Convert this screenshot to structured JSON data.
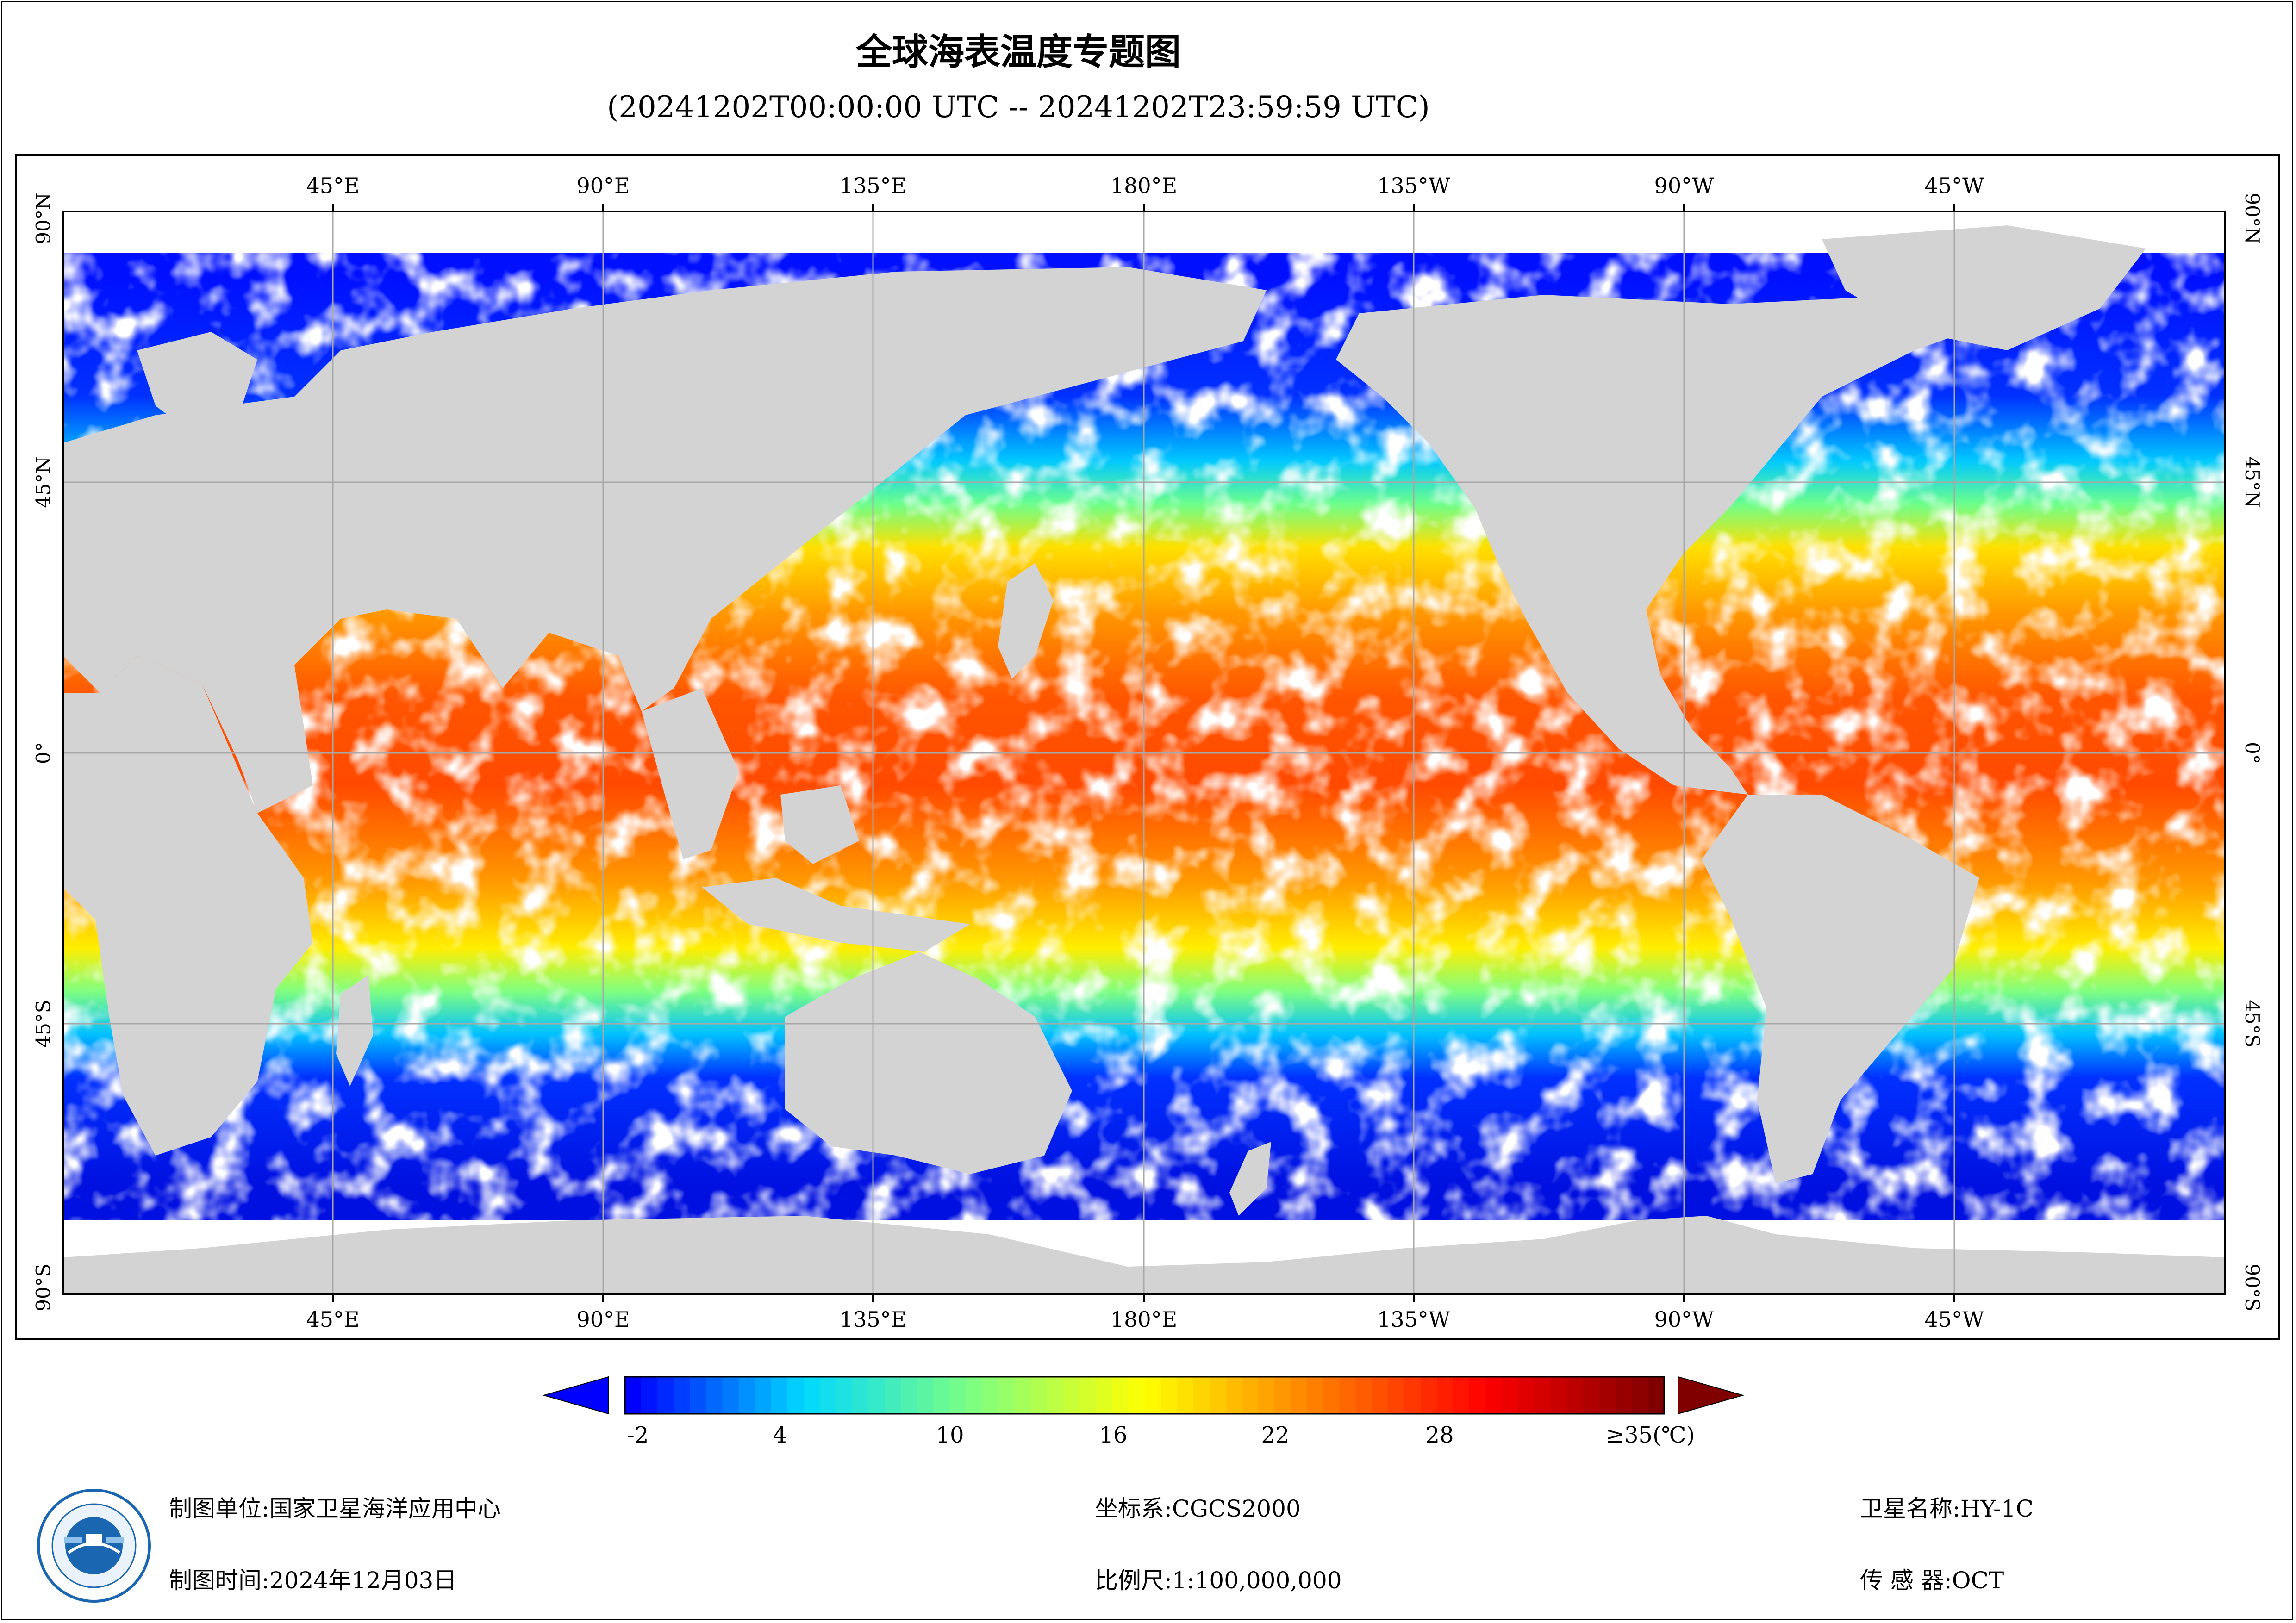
{
  "header": {
    "title": "全球海表温度专题图",
    "subtitle": "(20241202T00:00:00 UTC -- 20241202T23:59:59 UTC)"
  },
  "map": {
    "longitude_labels": [
      "45°E",
      "90°E",
      "135°E",
      "180°E",
      "135°W",
      "90°W",
      "45°W"
    ],
    "latitude_labels": [
      "90°N",
      "45°N",
      "0°",
      "45°S",
      "90°S"
    ],
    "colors": {
      "land": "#d3d3d3",
      "cloud_no_data": "#ffffff",
      "gridline": "#a8a8a8"
    }
  },
  "colorbar": {
    "tick_labels": [
      "-2",
      "4",
      "10",
      "16",
      "22",
      "28",
      "≥35(℃)"
    ],
    "colors": [
      "#0000ff",
      "#00d8ff",
      "#7fff7f",
      "#ffff00",
      "#ff8000",
      "#ff0000",
      "#800000"
    ],
    "range": [
      -2,
      35
    ],
    "unit": "℃"
  },
  "footer": {
    "producer_label": "制图单位:",
    "producer_value": "国家卫星海洋应用中心",
    "time_label": "制图时间:",
    "time_value": "2024年12月03日",
    "crs_label": "坐标系:",
    "crs_value": "CGCS2000",
    "scale_label": "比例尺:",
    "scale_value": "1:100,000,000",
    "satellite_label": "卫星名称:",
    "satellite_value": "HY-1C",
    "sensor_label": "传 感 器:",
    "sensor_value": "OCT"
  }
}
